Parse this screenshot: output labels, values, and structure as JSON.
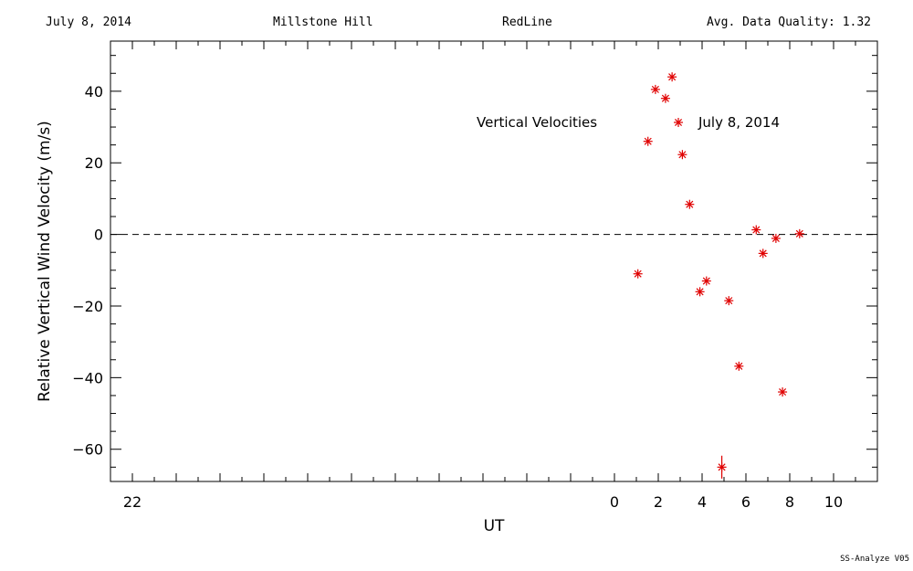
{
  "header": {
    "date": "July 8, 2014",
    "site": "Millstone Hill",
    "instrument": "RedLine",
    "quality": "Avg. Data Quality: 1.32"
  },
  "footer": "SS-Analyze V05",
  "chart_data": {
    "type": "scatter",
    "xlabel": "UT",
    "ylabel": "Relative Vertical Wind Velocity (m/s)",
    "xlim": [
      -23,
      12
    ],
    "ylim": [
      -69,
      54
    ],
    "x_ticks": [
      -22,
      -20,
      -18,
      -16,
      -14,
      -12,
      -10,
      -8,
      -6,
      -4,
      -2,
      0,
      2,
      4,
      6,
      8,
      10
    ],
    "x_tick_labels": [
      "22",
      "",
      "",
      "",
      "",
      "",
      "",
      "",
      "",
      "",
      "",
      "0",
      "2",
      "4",
      "6",
      "8",
      "10"
    ],
    "y_ticks": [
      -60,
      -40,
      -20,
      0,
      20,
      40
    ],
    "y_tick_labels": [
      "−60",
      "−40",
      "−20",
      "0",
      "20",
      "40"
    ],
    "zero_line": 0,
    "grid": false,
    "legend": {
      "title": "Vertical Velocities",
      "entry": "July 8, 2014",
      "placement": "top-right"
    },
    "series": [
      {
        "name": "July 8, 2014",
        "color": "#e00000",
        "marker": "asterisk",
        "points": [
          {
            "x": 1.07,
            "y": -11.0
          },
          {
            "x": 1.53,
            "y": 26.0
          },
          {
            "x": 1.87,
            "y": 40.5
          },
          {
            "x": 2.33,
            "y": 38.0
          },
          {
            "x": 2.63,
            "y": 44.0
          },
          {
            "x": 3.1,
            "y": 22.3
          },
          {
            "x": 3.43,
            "y": 8.4
          },
          {
            "x": 3.9,
            "y": -16.0
          },
          {
            "x": 4.2,
            "y": -13.0
          },
          {
            "x": 4.9,
            "y": -65.0,
            "err": 3.2
          },
          {
            "x": 5.22,
            "y": -18.5
          },
          {
            "x": 5.68,
            "y": -36.8
          },
          {
            "x": 6.47,
            "y": 1.3
          },
          {
            "x": 6.78,
            "y": -5.3
          },
          {
            "x": 7.37,
            "y": -1.1
          },
          {
            "x": 7.67,
            "y": -44.0
          },
          {
            "x": 8.45,
            "y": 0.2
          }
        ]
      }
    ]
  }
}
